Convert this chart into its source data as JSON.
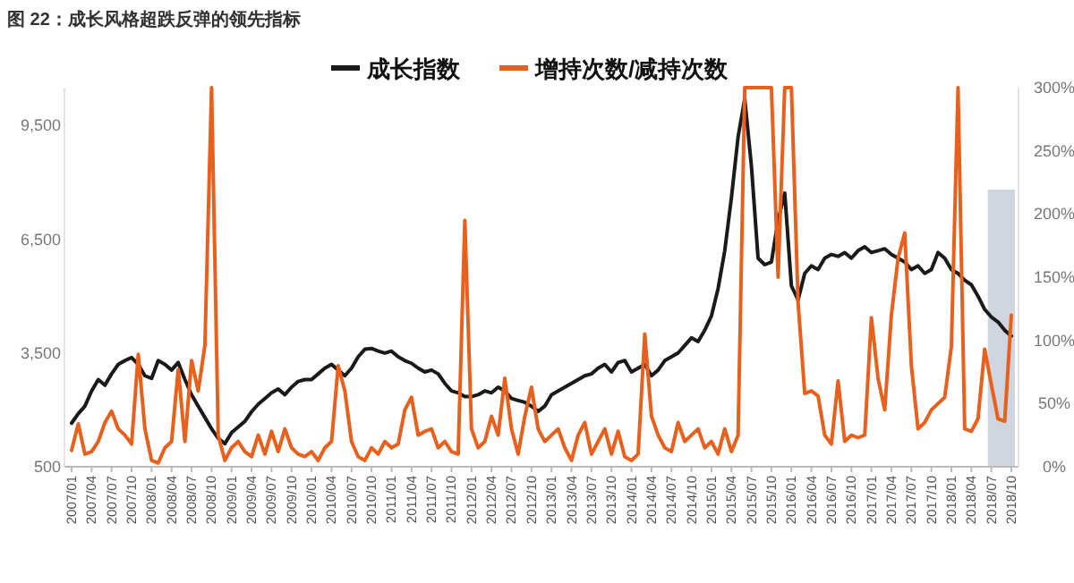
{
  "chart_data": {
    "type": "line",
    "title": "图 22：成长风格超跌反弹的领先指标",
    "categories": [
      "2007/01",
      null,
      null,
      "2007/04",
      null,
      null,
      "2007/07",
      null,
      null,
      "2007/10",
      null,
      null,
      "2008/01",
      null,
      null,
      "2008/04",
      null,
      null,
      "2008/07",
      null,
      null,
      "2008/10",
      null,
      null,
      "2009/01",
      null,
      null,
      "2009/04",
      null,
      null,
      "2009/07",
      null,
      null,
      "2009/10",
      null,
      null,
      "2010/01",
      null,
      null,
      "2010/04",
      null,
      null,
      "2010/07",
      null,
      null,
      "2010/10",
      null,
      null,
      "2011/01",
      null,
      null,
      "2011/04",
      null,
      null,
      "2011/07",
      null,
      null,
      "2011/10",
      null,
      null,
      "2012/01",
      null,
      null,
      "2012/04",
      null,
      null,
      "2012/07",
      null,
      null,
      "2012/10",
      null,
      null,
      "2013/01",
      null,
      null,
      "2013/04",
      null,
      null,
      "2013/07",
      null,
      null,
      "2013/10",
      null,
      null,
      "2014/01",
      null,
      null,
      "2014/04",
      null,
      null,
      "2014/07",
      null,
      null,
      "2014/10",
      null,
      null,
      "2015/01",
      null,
      null,
      "2015/04",
      null,
      null,
      "2015/07",
      null,
      null,
      "2015/10",
      null,
      null,
      "2016/01",
      null,
      null,
      "2016/04",
      null,
      null,
      "2016/07",
      null,
      null,
      "2016/10",
      null,
      null,
      "2017/01",
      null,
      null,
      "2017/04",
      null,
      null,
      "2017/07",
      null,
      null,
      "2017/10",
      null,
      null,
      "2018/01",
      null,
      null,
      "2018/04",
      null,
      null,
      "2018/07",
      null,
      null,
      "2018/10"
    ],
    "series": [
      {
        "name": "成长指数",
        "color": "#1a1a1a",
        "values": [
          1650,
          1900,
          2100,
          2500,
          2800,
          2650,
          2950,
          3200,
          3300,
          3380,
          3200,
          2900,
          2830,
          3300,
          3200,
          3050,
          3250,
          2800,
          2400,
          2100,
          1800,
          1500,
          1250,
          1110,
          1400,
          1550,
          1700,
          1950,
          2150,
          2300,
          2450,
          2550,
          2400,
          2600,
          2750,
          2800,
          2800,
          2950,
          3100,
          3200,
          3050,
          2900,
          3100,
          3400,
          3600,
          3620,
          3550,
          3500,
          3550,
          3400,
          3300,
          3230,
          3100,
          3000,
          3050,
          2950,
          2700,
          2500,
          2450,
          2350,
          2350,
          2400,
          2500,
          2450,
          2600,
          2500,
          2300,
          2250,
          2200,
          2100,
          1960,
          2100,
          2400,
          2500,
          2600,
          2700,
          2800,
          2900,
          2950,
          3100,
          3200,
          3000,
          3250,
          3300,
          3000,
          3100,
          3200,
          2900,
          3050,
          3300,
          3400,
          3500,
          3700,
          3900,
          3800,
          4100,
          4480,
          5200,
          6200,
          7600,
          9200,
          10200,
          8430,
          6000,
          5830,
          5900,
          7000,
          7720,
          5270,
          4900,
          5600,
          5800,
          5700,
          6000,
          6100,
          6050,
          6150,
          6000,
          6200,
          6300,
          6150,
          6200,
          6250,
          6100,
          6000,
          5900,
          5700,
          5800,
          5600,
          5700,
          6150,
          6000,
          5700,
          5600,
          5420,
          5300,
          5000,
          4650,
          4450,
          4320,
          4100,
          3950
        ]
      },
      {
        "name": "增持次数/减持次数",
        "color": "#e8601c",
        "axis": "y2",
        "values": [
          13,
          34,
          10,
          12,
          20,
          35,
          44,
          30,
          25,
          18,
          89,
          30,
          5,
          3,
          15,
          20,
          77,
          20,
          84,
          60,
          96,
          300,
          25,
          5,
          15,
          20,
          12,
          8,
          25,
          10,
          28,
          12,
          30,
          15,
          10,
          8,
          12,
          5,
          15,
          20,
          80,
          60,
          20,
          8,
          5,
          15,
          10,
          20,
          15,
          18,
          45,
          55,
          25,
          28,
          30,
          15,
          20,
          12,
          10,
          195,
          30,
          15,
          20,
          40,
          25,
          70,
          30,
          10,
          40,
          63,
          30,
          20,
          25,
          30,
          15,
          5,
          25,
          35,
          10,
          20,
          30,
          10,
          28,
          8,
          5,
          10,
          105,
          40,
          25,
          15,
          12,
          35,
          20,
          25,
          30,
          15,
          20,
          10,
          30,
          12,
          25,
          300,
          300,
          300,
          300,
          300,
          150,
          300,
          300,
          130,
          58,
          60,
          56,
          25,
          18,
          68,
          20,
          25,
          23,
          25,
          118,
          70,
          45,
          120,
          165,
          185,
          80,
          30,
          35,
          45,
          50,
          55,
          95,
          300,
          30,
          28,
          38,
          93,
          65,
          38,
          36,
          120
        ]
      }
    ],
    "ylim": [
      500,
      10500
    ],
    "yticks": [
      {
        "value": 500,
        "label": "500"
      },
      {
        "value": 3500,
        "label": "3,500"
      },
      {
        "value": 6500,
        "label": "6,500"
      },
      {
        "value": 9500,
        "label": "9,500"
      }
    ],
    "y2lim": [
      0,
      300
    ],
    "y2ticks": [
      {
        "value": 0,
        "label": "0%"
      },
      {
        "value": 50,
        "label": "50%"
      },
      {
        "value": 100,
        "label": "100%"
      },
      {
        "value": 150,
        "label": "150%"
      },
      {
        "value": 200,
        "label": "200%"
      },
      {
        "value": 250,
        "label": "250%"
      },
      {
        "value": 300,
        "label": "300%"
      }
    ],
    "bands": [
      {
        "axis": "x",
        "from": "2018/07",
        "to": "2018/10",
        "color": "#cfd6e0"
      }
    ],
    "legend": "top",
    "grid": false
  }
}
